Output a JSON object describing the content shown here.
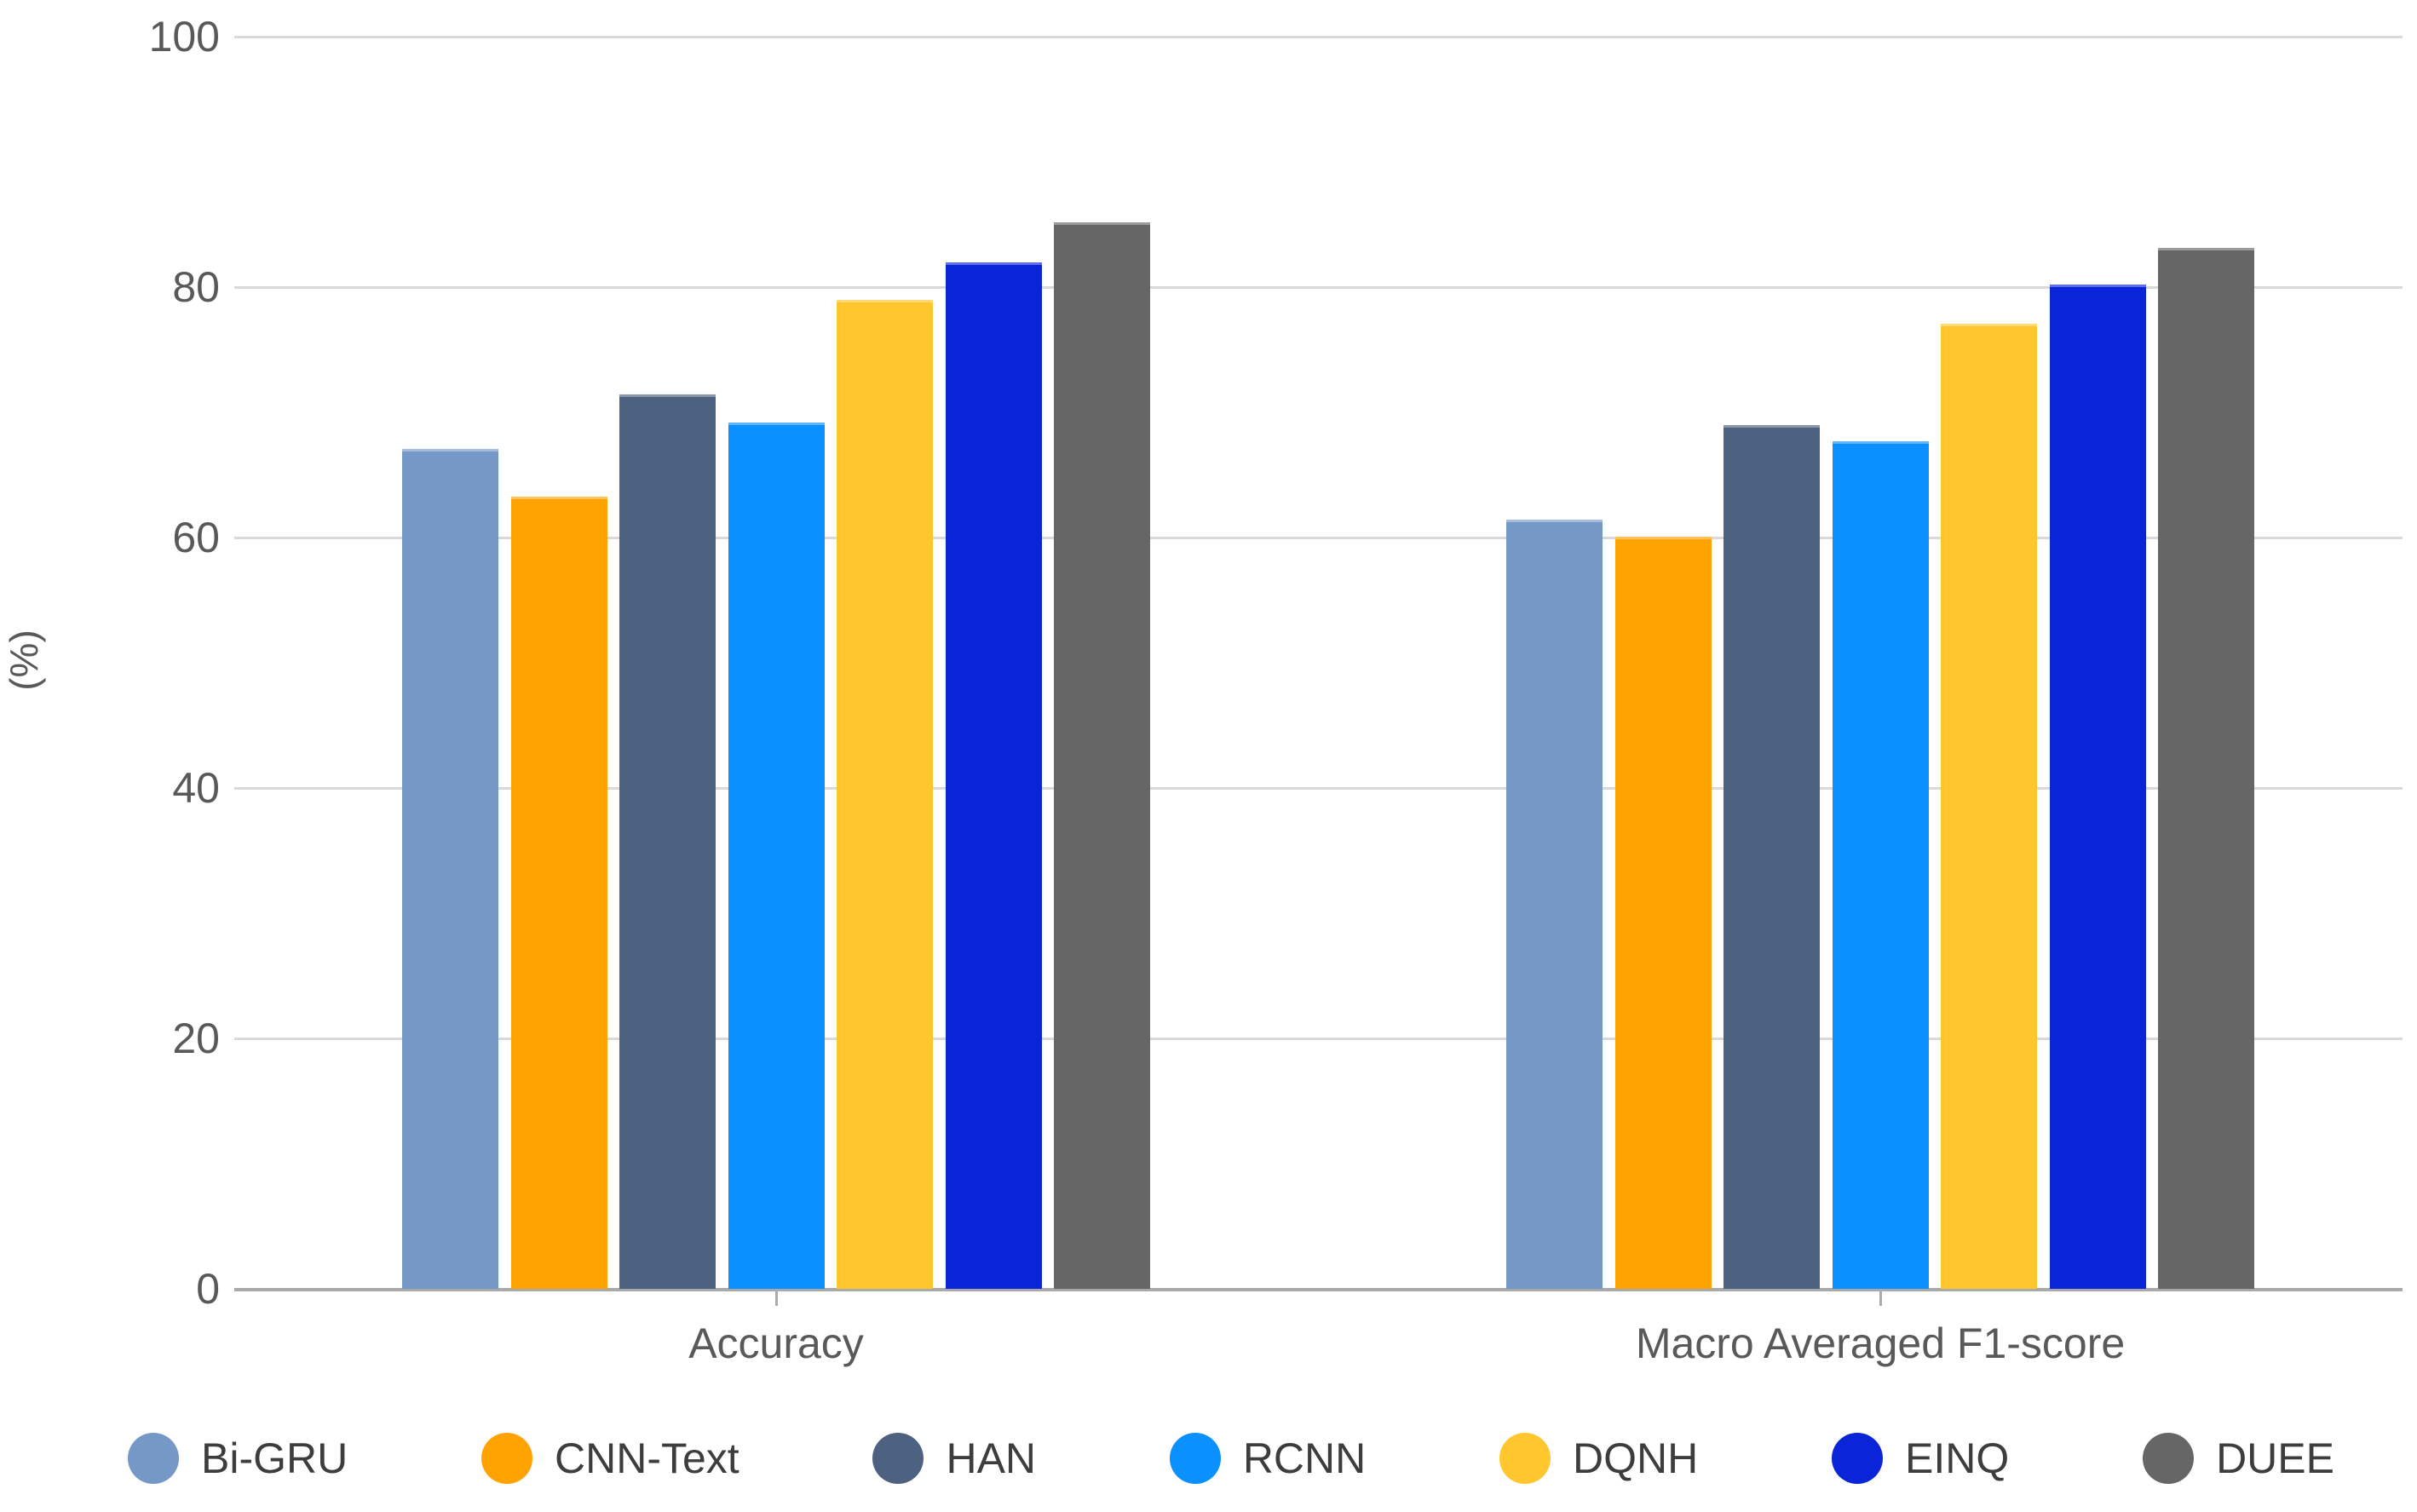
{
  "chart_data": {
    "type": "bar",
    "title": "",
    "categories": [
      "Accuracy",
      "Macro Averaged F1-score"
    ],
    "series": [
      {
        "name": "Bi-GRU",
        "color": "#7598C7",
        "values": [
          67.1,
          61.4
        ]
      },
      {
        "name": "CNN-Text",
        "color": "#FFA302",
        "values": [
          63.3,
          60.1
        ]
      },
      {
        "name": "HAN",
        "color": "#4D6180",
        "values": [
          71.4,
          69.0
        ]
      },
      {
        "name": "RCNN",
        "color": "#0A91FF",
        "values": [
          69.2,
          67.7
        ]
      },
      {
        "name": "DQNH",
        "color": "#FFC62E",
        "values": [
          79.0,
          77.1
        ]
      },
      {
        "name": "EINQ",
        "color": "#0A25D8",
        "values": [
          82.0,
          80.2
        ]
      },
      {
        "name": "DUEE",
        "color": "#666666",
        "values": [
          85.2,
          83.1
        ]
      }
    ],
    "xlabel": "",
    "ylabel": "(%)",
    "ylim": [
      0,
      100
    ],
    "yticks": [
      0,
      20,
      40,
      60,
      80,
      100
    ],
    "grid": true,
    "legend_position": "bottom",
    "colors": {
      "gridline": "#d9d9d9",
      "axis_line": "#a9a9a9",
      "tick_text": "#595959",
      "legend_text": "#3d3d3d",
      "background": "#ffffff"
    }
  }
}
